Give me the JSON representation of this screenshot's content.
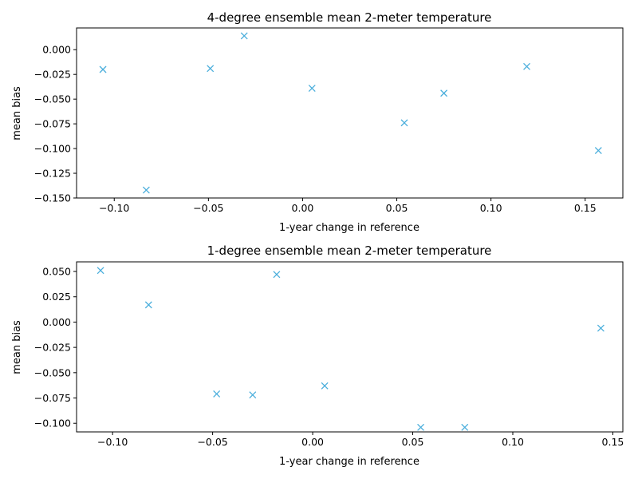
{
  "chart_data": [
    {
      "type": "scatter",
      "title": "4-degree ensemble mean 2-meter temperature",
      "xlabel": "1-year change in reference",
      "ylabel": "mean bias",
      "xlim": [
        -0.12,
        0.17
      ],
      "ylim": [
        -0.15,
        0.022
      ],
      "xticks": [
        -0.1,
        -0.05,
        0.0,
        0.05,
        0.1,
        0.15
      ],
      "xtick_labels": [
        "−0.10",
        "−0.05",
        "0.00",
        "0.05",
        "0.10",
        "0.15"
      ],
      "yticks": [
        0.0,
        -0.025,
        -0.05,
        -0.075,
        -0.1,
        -0.125,
        -0.15
      ],
      "ytick_labels": [
        "0.000",
        "−0.025",
        "−0.050",
        "−0.075",
        "−0.100",
        "−0.125",
        "−0.150"
      ],
      "grid": false,
      "marker": "x",
      "color": "#4aaedc",
      "points": [
        {
          "x": -0.106,
          "y": -0.02
        },
        {
          "x": -0.083,
          "y": -0.142
        },
        {
          "x": -0.049,
          "y": -0.019
        },
        {
          "x": -0.031,
          "y": 0.014
        },
        {
          "x": 0.005,
          "y": -0.039
        },
        {
          "x": 0.054,
          "y": -0.074
        },
        {
          "x": 0.075,
          "y": -0.044
        },
        {
          "x": 0.119,
          "y": -0.017
        },
        {
          "x": 0.157,
          "y": -0.102
        }
      ]
    },
    {
      "type": "scatter",
      "title": "1-degree ensemble mean 2-meter temperature",
      "xlabel": "1-year change in reference",
      "ylabel": "mean bias",
      "xlim": [
        -0.118,
        0.155
      ],
      "ylim": [
        -0.1085,
        0.0595
      ],
      "xticks": [
        -0.1,
        -0.05,
        0.0,
        0.05,
        0.1,
        0.15
      ],
      "xtick_labels": [
        "−0.10",
        "−0.05",
        "0.00",
        "0.05",
        "0.10",
        "0.15"
      ],
      "yticks": [
        0.05,
        0.025,
        0.0,
        -0.025,
        -0.05,
        -0.075,
        -0.1
      ],
      "ytick_labels": [
        "0.050",
        "0.025",
        "0.000",
        "−0.025",
        "−0.050",
        "−0.075",
        "−0.100"
      ],
      "grid": false,
      "marker": "x",
      "color": "#4aaedc",
      "points": [
        {
          "x": -0.106,
          "y": 0.051
        },
        {
          "x": -0.082,
          "y": 0.017
        },
        {
          "x": -0.048,
          "y": -0.071
        },
        {
          "x": -0.03,
          "y": -0.072
        },
        {
          "x": -0.018,
          "y": 0.047
        },
        {
          "x": 0.006,
          "y": -0.063
        },
        {
          "x": 0.054,
          "y": -0.104
        },
        {
          "x": 0.076,
          "y": -0.104
        },
        {
          "x": 0.144,
          "y": -0.006
        }
      ]
    }
  ]
}
